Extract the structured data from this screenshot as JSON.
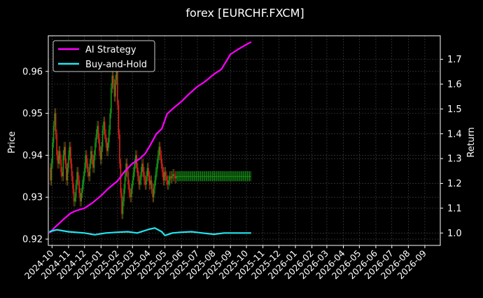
{
  "chart_data": {
    "type": "line",
    "title": "forex [EURCHF.FXCM]",
    "ylabel_left": "Price",
    "ylabel_right": "Return",
    "xlabel": "",
    "grid": true,
    "legend_position": "top-left",
    "colors": {
      "background": "#000000",
      "grid": "#4a4a4a",
      "ai_strategy": "#ff00ff",
      "buy_and_hold": "#22e5ee",
      "candle_up": "#1a9e1a",
      "candle_down": "#e0241a"
    },
    "x_ticks": [
      "2024-10",
      "2024-11",
      "2024-12",
      "2025-01",
      "2025-02",
      "2025-03",
      "2025-04",
      "2025-05",
      "2025-06",
      "2025-07",
      "2025-08",
      "2025-09",
      "2025-10",
      "2025-11",
      "2025-12",
      "2026-01",
      "2026-02",
      "2026-03",
      "2026-04",
      "2026-05",
      "2026-06",
      "2026-07",
      "2026-08",
      "2026-09"
    ],
    "x_range": [
      "2024-09-24",
      "2026-09-30"
    ],
    "left_axis": {
      "range": [
        0.9185,
        0.9685
      ],
      "ticks": [
        "0.92",
        "0.93",
        "0.94",
        "0.95",
        "0.96"
      ]
    },
    "right_axis": {
      "range": [
        0.95,
        1.795
      ],
      "ticks": [
        "1.0",
        "1.1",
        "1.2",
        "1.3",
        "1.4",
        "1.5",
        "1.6",
        "1.7"
      ]
    },
    "series": [
      {
        "name": "AI Strategy",
        "axis": "right",
        "points": [
          [
            "2024-09-26",
            1.0
          ],
          [
            "2024-10-05",
            1.02
          ],
          [
            "2024-10-15",
            1.04
          ],
          [
            "2024-10-25",
            1.06
          ],
          [
            "2024-11-05",
            1.08
          ],
          [
            "2024-11-15",
            1.09
          ],
          [
            "2024-12-01",
            1.1
          ],
          [
            "2024-12-15",
            1.12
          ],
          [
            "2025-01-01",
            1.15
          ],
          [
            "2025-01-15",
            1.18
          ],
          [
            "2025-02-01",
            1.21
          ],
          [
            "2025-02-15",
            1.25
          ],
          [
            "2025-03-01",
            1.28
          ],
          [
            "2025-03-15",
            1.3
          ],
          [
            "2025-03-25",
            1.32
          ],
          [
            "2025-04-05",
            1.36
          ],
          [
            "2025-04-15",
            1.4
          ],
          [
            "2025-04-25",
            1.42
          ],
          [
            "2025-05-05",
            1.48
          ],
          [
            "2025-05-15",
            1.5
          ],
          [
            "2025-06-01",
            1.53
          ],
          [
            "2025-06-15",
            1.56
          ],
          [
            "2025-07-01",
            1.59
          ],
          [
            "2025-07-15",
            1.61
          ],
          [
            "2025-08-01",
            1.64
          ],
          [
            "2025-08-15",
            1.66
          ],
          [
            "2025-09-01",
            1.72
          ],
          [
            "2025-09-15",
            1.74
          ],
          [
            "2025-10-01",
            1.76
          ],
          [
            "2025-10-10",
            1.77
          ]
        ]
      },
      {
        "name": "Buy-and-Hold",
        "axis": "right",
        "points": [
          [
            "2024-09-26",
            1.005
          ],
          [
            "2024-10-10",
            1.013
          ],
          [
            "2024-11-01",
            1.005
          ],
          [
            "2024-12-01",
            1.0
          ],
          [
            "2024-12-20",
            0.993
          ],
          [
            "2025-01-10",
            1.0
          ],
          [
            "2025-02-01",
            1.003
          ],
          [
            "2025-02-20",
            1.005
          ],
          [
            "2025-03-10",
            1.0
          ],
          [
            "2025-04-01",
            1.015
          ],
          [
            "2025-04-12",
            1.02
          ],
          [
            "2025-04-25",
            1.005
          ],
          [
            "2025-05-01",
            0.99
          ],
          [
            "2025-05-15",
            1.0
          ],
          [
            "2025-06-01",
            1.003
          ],
          [
            "2025-06-20",
            1.005
          ],
          [
            "2025-07-10",
            1.0
          ],
          [
            "2025-08-01",
            0.995
          ],
          [
            "2025-08-20",
            1.0
          ],
          [
            "2025-09-01",
            1.0
          ],
          [
            "2025-09-20",
            1.0
          ],
          [
            "2025-10-10",
            1.0
          ]
        ]
      }
    ],
    "candles": {
      "axis": "left",
      "start": "2024-09-26",
      "step_days": 2,
      "closes": [
        0.937,
        0.934,
        0.938,
        0.943,
        0.947,
        0.95,
        0.945,
        0.94,
        0.938,
        0.941,
        0.939,
        0.936,
        0.935,
        0.94,
        0.942,
        0.938,
        0.934,
        0.937,
        0.94,
        0.942,
        0.938,
        0.935,
        0.932,
        0.929,
        0.93,
        0.933,
        0.936,
        0.934,
        0.931,
        0.929,
        0.931,
        0.933,
        0.935,
        0.937,
        0.94,
        0.938,
        0.936,
        0.935,
        0.938,
        0.941,
        0.939,
        0.937,
        0.94,
        0.943,
        0.945,
        0.947,
        0.944,
        0.941,
        0.939,
        0.942,
        0.946,
        0.948,
        0.945,
        0.943,
        0.941,
        0.943,
        0.946,
        0.95,
        0.956,
        0.959,
        0.957,
        0.954,
        0.958,
        0.96,
        0.952,
        0.945,
        0.938,
        0.931,
        0.926,
        0.929,
        0.932,
        0.935,
        0.938,
        0.936,
        0.933,
        0.931,
        0.93,
        0.932,
        0.934,
        0.936,
        0.938,
        0.94,
        0.937,
        0.935,
        0.933,
        0.934,
        0.936,
        0.938,
        0.936,
        0.934,
        0.933,
        0.935,
        0.937,
        0.935,
        0.933,
        0.934,
        0.932,
        0.93,
        0.932,
        0.934,
        0.936,
        0.938,
        0.94,
        0.942,
        0.94,
        0.938,
        0.936,
        0.934,
        0.936,
        0.935,
        0.934,
        0.933,
        0.934,
        0.935,
        0.9345,
        0.935,
        0.9355,
        0.935,
        0.9345,
        0.935,
        0.935,
        0.935,
        0.935,
        0.935,
        0.935,
        0.935,
        0.935,
        0.935,
        0.935,
        0.935,
        0.935,
        0.935,
        0.935,
        0.935,
        0.935,
        0.935,
        0.935,
        0.935,
        0.935,
        0.935,
        0.935,
        0.935,
        0.935,
        0.935,
        0.935,
        0.935,
        0.935,
        0.935,
        0.935,
        0.935,
        0.935,
        0.935,
        0.935,
        0.935,
        0.935,
        0.935,
        0.935,
        0.935,
        0.935,
        0.935,
        0.935,
        0.935,
        0.935,
        0.935,
        0.935,
        0.935,
        0.935,
        0.935,
        0.935,
        0.935,
        0.935,
        0.935,
        0.935,
        0.935,
        0.935,
        0.935,
        0.935,
        0.935,
        0.935,
        0.935,
        0.935,
        0.935,
        0.935,
        0.935,
        0.935,
        0.935,
        0.935,
        0.935,
        0.935,
        0.935,
        0.935,
        0.935,
        0.935,
        0.935,
        0.935,
        0.935
      ]
    }
  }
}
